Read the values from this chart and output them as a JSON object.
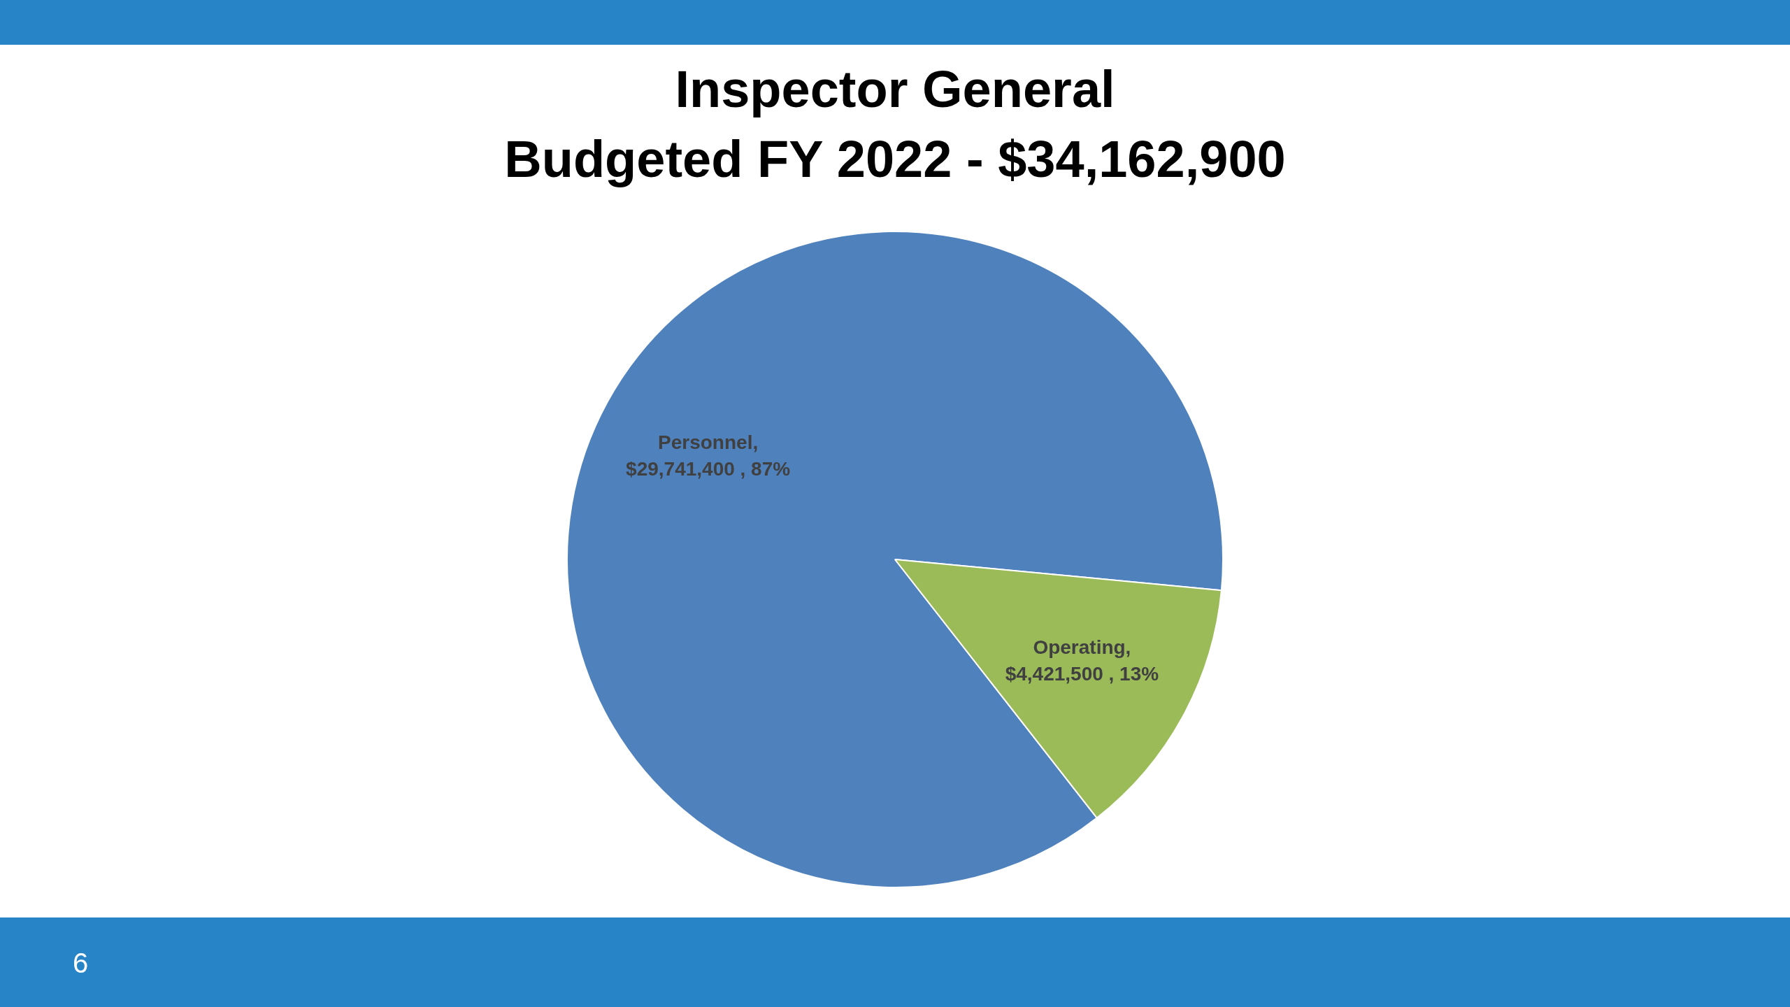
{
  "chart_data": {
    "type": "pie",
    "title": "Inspector General",
    "subtitle": "Budgeted FY 2022 - $34,162,900",
    "categories": [
      "Personnel",
      "Operating"
    ],
    "values": [
      29741400,
      4421500
    ],
    "colors": [
      "#4f81bd",
      "#9bbb59"
    ],
    "value_labels": [
      ",\n$29,741,400 , 87%",
      ",\n$4,421,500 , 13%"
    ],
    "legend": false,
    "annotations": [
      "6"
    ]
  }
}
